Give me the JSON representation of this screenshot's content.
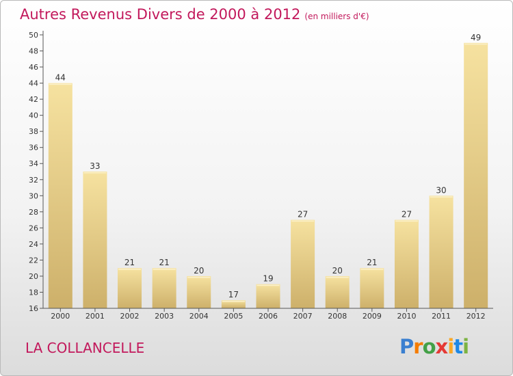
{
  "title": "Autres Revenus Divers de 2000 à 2012",
  "subtitle": "(en milliers d'€)",
  "location": "LA COLLANCELLE",
  "logo": {
    "text": "Proxiti",
    "letters": [
      "P",
      "r",
      "o",
      "x",
      "i",
      "t",
      "i"
    ],
    "colors": [
      "#3a7fd0",
      "#f57c00",
      "#43a047",
      "#e53935",
      "#f9a825",
      "#1e88e5",
      "#7cb342"
    ]
  },
  "colors": {
    "title": "#c2185b",
    "bar_light": "#f6e2a0",
    "bar_dark": "#cdb06a"
  },
  "chart_data": {
    "type": "bar",
    "categories": [
      "2000",
      "2001",
      "2002",
      "2003",
      "2004",
      "2005",
      "2006",
      "2007",
      "2008",
      "2009",
      "2010",
      "2011",
      "2012"
    ],
    "values": [
      44,
      33,
      21,
      21,
      20,
      17,
      19,
      27,
      20,
      21,
      27,
      30,
      49
    ],
    "title": "Autres Revenus Divers de 2000 à 2012",
    "subtitle": "(en milliers d'€)",
    "ylim": [
      16,
      50
    ],
    "yticks": [
      16,
      18,
      20,
      22,
      24,
      26,
      28,
      30,
      32,
      34,
      36,
      38,
      40,
      42,
      44,
      46,
      48,
      50
    ],
    "grid": false
  }
}
